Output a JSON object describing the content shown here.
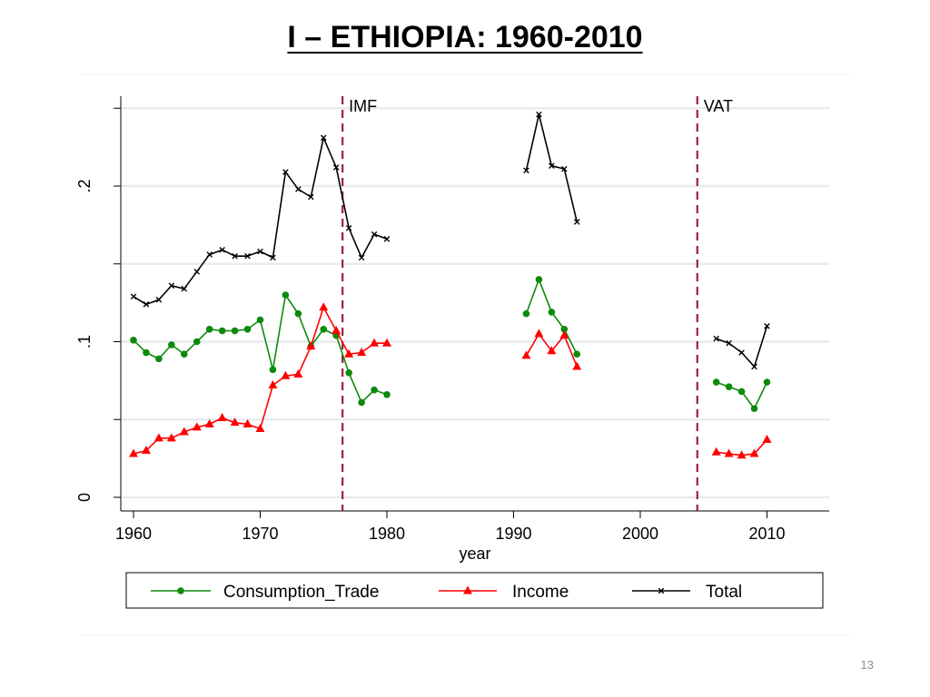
{
  "slide": {
    "title": "I – ETHIOPIA: 1960-2010",
    "page_number": "13"
  },
  "chart_data": {
    "type": "line",
    "title": "",
    "xlabel": "year",
    "ylabel": "",
    "xlim": [
      1959,
      2015
    ],
    "ylim": [
      0,
      0.25
    ],
    "x_ticks": [
      1960,
      1970,
      1980,
      1990,
      2000,
      2010
    ],
    "y_ticks": [
      0,
      0.05,
      0.1,
      0.15,
      0.2,
      0.25
    ],
    "y_tick_labels": {
      "0": "0",
      "0.1": ".1",
      "0.2": ".2"
    },
    "grid": true,
    "legend": "bottom",
    "annotations": [
      {
        "label": "IMF",
        "x": 1976.5,
        "color": "#a0203c"
      },
      {
        "label": "VAT",
        "x": 2004.5,
        "color": "#a0203c"
      }
    ],
    "series": [
      {
        "name": "Consumption_Trade",
        "color": "#0c8a0c",
        "marker": "circle",
        "segments": [
          {
            "x": [
              1960,
              1961,
              1962,
              1963,
              1964,
              1965,
              1966,
              1967,
              1968,
              1969,
              1970,
              1971,
              1972,
              1973,
              1974,
              1975,
              1976,
              1977,
              1978,
              1979,
              1980
            ],
            "y": [
              0.101,
              0.093,
              0.089,
              0.098,
              0.092,
              0.1,
              0.108,
              0.107,
              0.107,
              0.108,
              0.114,
              0.082,
              0.13,
              0.118,
              0.097,
              0.108,
              0.104,
              0.08,
              0.061,
              0.069,
              0.066
            ]
          },
          {
            "x": [
              1991,
              1992,
              1993,
              1994,
              1995
            ],
            "y": [
              0.118,
              0.14,
              0.119,
              0.108,
              0.092
            ]
          },
          {
            "x": [
              2006,
              2007,
              2008,
              2009,
              2010
            ],
            "y": [
              0.074,
              0.071,
              0.068,
              0.057,
              0.074
            ]
          }
        ]
      },
      {
        "name": "Income",
        "color": "#ff0000",
        "marker": "triangle",
        "segments": [
          {
            "x": [
              1960,
              1961,
              1962,
              1963,
              1964,
              1965,
              1966,
              1967,
              1968,
              1969,
              1970,
              1971,
              1972,
              1973,
              1974,
              1975,
              1976,
              1977,
              1978,
              1979,
              1980
            ],
            "y": [
              0.028,
              0.03,
              0.038,
              0.038,
              0.042,
              0.045,
              0.047,
              0.051,
              0.048,
              0.047,
              0.044,
              0.072,
              0.078,
              0.079,
              0.097,
              0.122,
              0.107,
              0.092,
              0.093,
              0.099,
              0.099
            ]
          },
          {
            "x": [
              1991,
              1992,
              1993,
              1994,
              1995
            ],
            "y": [
              0.091,
              0.105,
              0.094,
              0.104,
              0.084
            ]
          },
          {
            "x": [
              2006,
              2007,
              2008,
              2009,
              2010
            ],
            "y": [
              0.029,
              0.028,
              0.027,
              0.028,
              0.037
            ]
          }
        ]
      },
      {
        "name": "Total",
        "color": "#000000",
        "marker": "x",
        "segments": [
          {
            "x": [
              1960,
              1961,
              1962,
              1963,
              1964,
              1965,
              1966,
              1967,
              1968,
              1969,
              1970,
              1971,
              1972,
              1973,
              1974,
              1975,
              1976,
              1977,
              1978,
              1979,
              1980
            ],
            "y": [
              0.129,
              0.124,
              0.127,
              0.136,
              0.134,
              0.145,
              0.156,
              0.159,
              0.155,
              0.155,
              0.158,
              0.154,
              0.209,
              0.198,
              0.193,
              0.231,
              0.212,
              0.173,
              0.154,
              0.169,
              0.166
            ]
          },
          {
            "x": [
              1991,
              1992,
              1993,
              1994,
              1995
            ],
            "y": [
              0.21,
              0.246,
              0.213,
              0.211,
              0.177
            ]
          },
          {
            "x": [
              2006,
              2007,
              2008,
              2009,
              2010
            ],
            "y": [
              0.102,
              0.099,
              0.093,
              0.084,
              0.11
            ]
          }
        ]
      }
    ]
  }
}
